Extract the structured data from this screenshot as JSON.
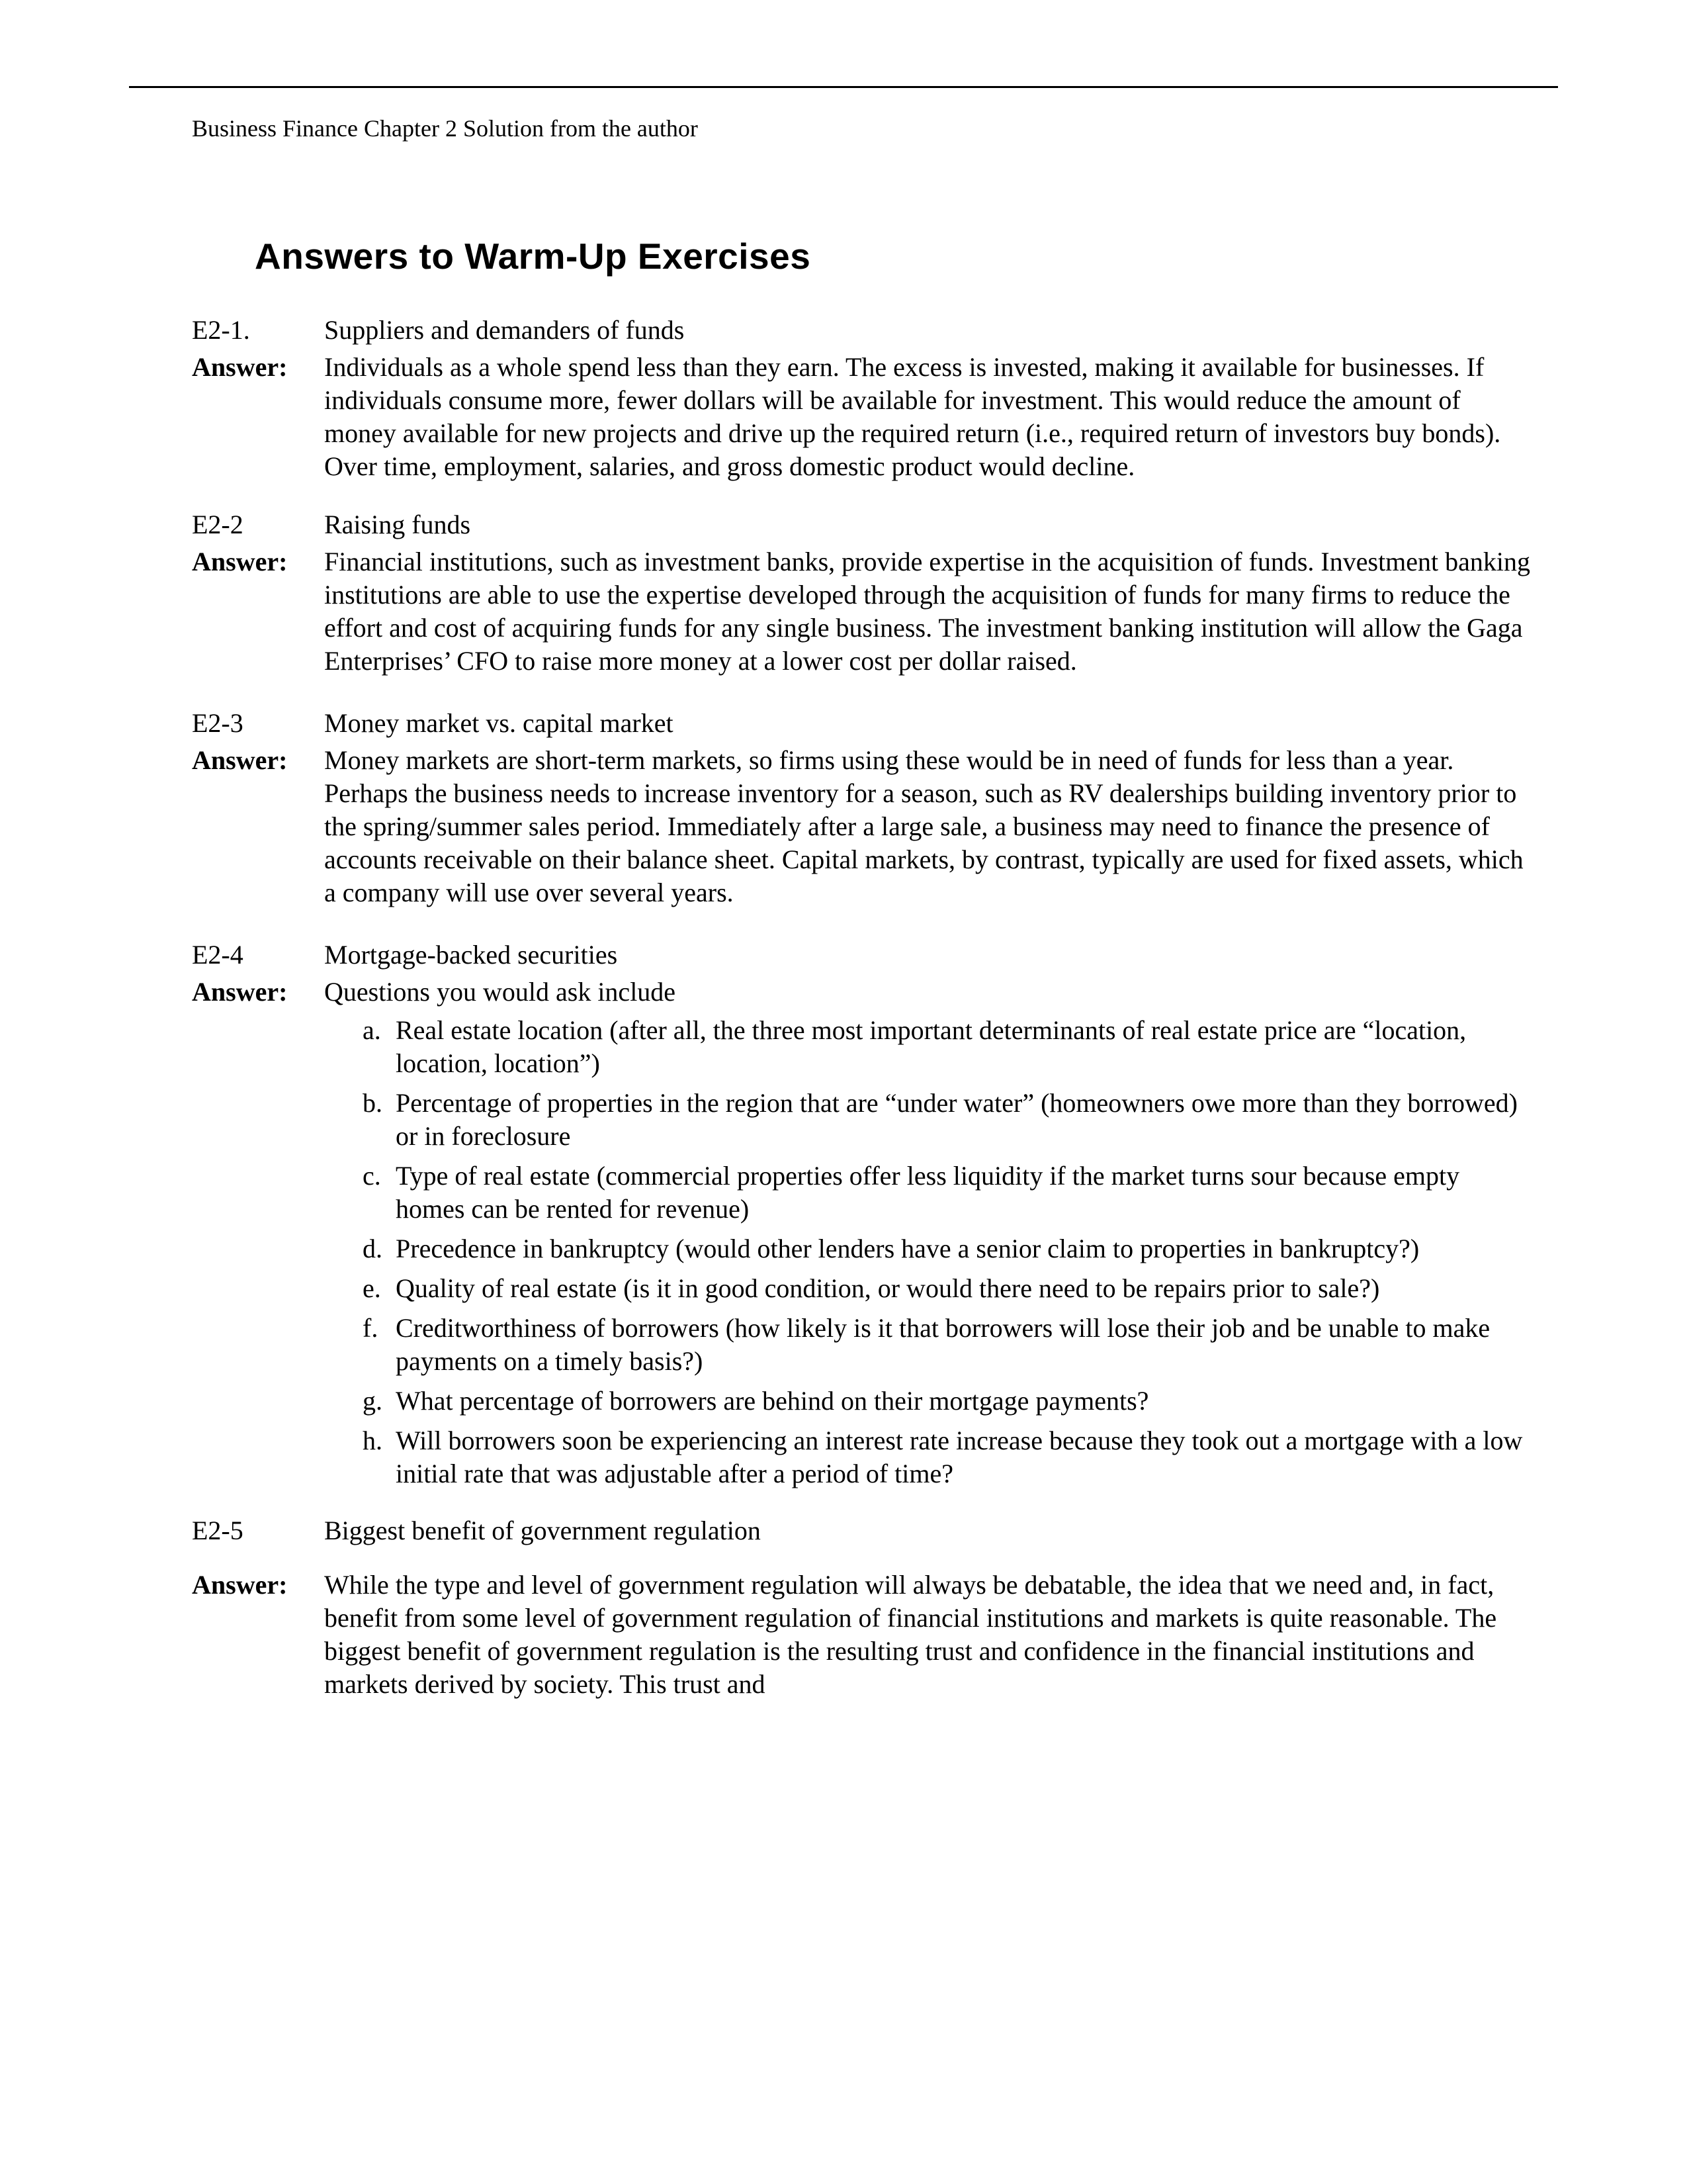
{
  "runningHeader": "Business Finance  Chapter 2 Solution from the author",
  "sectionTitle": "Answers to Warm-Up Exercises",
  "entries": [
    {
      "id": "E2-1.",
      "title": "Suppliers and demanders of funds",
      "answerLabel": "Answer:",
      "answer": "Individuals as a whole spend less than they earn. The excess is invested, making it available for businesses. If individuals consume more, fewer dollars will be available for investment. This would reduce the amount of money available for new projects and drive up the required return (i.e., required return of investors buy bonds). Over time, employment, salaries, and gross domestic product would decline."
    },
    {
      "id": "E2-2",
      "title": "Raising funds",
      "answerLabel": "Answer:",
      "answer": "Financial institutions, such as investment banks, provide expertise in the acquisition of funds. Investment banking institutions are able to use the expertise developed through the acquisition of funds for many firms to reduce the effort and cost of acquiring funds for any single business. The investment banking institution will allow the Gaga Enterprises’ CFO to raise more money at a lower cost per dollar raised."
    },
    {
      "id": "E2-3",
      "title": "Money market vs. capital market",
      "answerLabel": "Answer:",
      "answer": "Money markets are short-term markets, so firms using these would be in need of funds for less than a year. Perhaps the business needs to increase inventory for a season, such as RV dealerships building inventory prior to the spring/summer sales period. Immediately after a large sale, a business may need to finance the presence of accounts receivable on their balance sheet. Capital markets, by contrast, typically are used for fixed assets, which a company will use over several years."
    },
    {
      "id": "E2-4",
      "title": "Mortgage-backed securities",
      "answerLabel": "Answer:",
      "answerIntro": "Questions you would ask include",
      "list": [
        {
          "marker": "a.",
          "text": "Real estate location (after all, the three most important determinants of real estate price are “location, location, location”)"
        },
        {
          "marker": "b.",
          "text": "Percentage of properties in the region that are “under water” (homeowners owe more than they borrowed) or in foreclosure"
        },
        {
          "marker": "c.",
          "text": "Type of real estate (commercial properties offer less liquidity if the market turns sour because empty homes can be rented for revenue)"
        },
        {
          "marker": "d.",
          "text": "Precedence in bankruptcy (would other lenders have a senior claim to properties in bankruptcy?)"
        },
        {
          "marker": "e.",
          "text": "Quality of real estate (is it in good condition, or would there need to be repairs prior to sale?)"
        },
        {
          "marker": "f.",
          "text": "Creditworthiness of borrowers (how likely is it that borrowers will lose their job and be unable to make payments on a timely basis?)"
        },
        {
          "marker": "g.",
          "text": "What percentage of borrowers are behind on their mortgage payments?"
        },
        {
          "marker": "h.",
          "text": "Will borrowers soon be experiencing an interest rate increase because they took out a mortgage with a low initial rate that was adjustable after a period of time?"
        }
      ]
    },
    {
      "id": "E2-5",
      "title": "Biggest benefit of government regulation",
      "answerLabel": "Answer:",
      "answer": "While the type and level of government regulation will always be debatable, the idea that we need and, in fact, benefit from some level of government regulation of financial institutions and markets is quite reasonable. The biggest benefit of government regulation is the resulting trust and confidence in the financial institutions and markets derived by society. This trust and"
    }
  ]
}
